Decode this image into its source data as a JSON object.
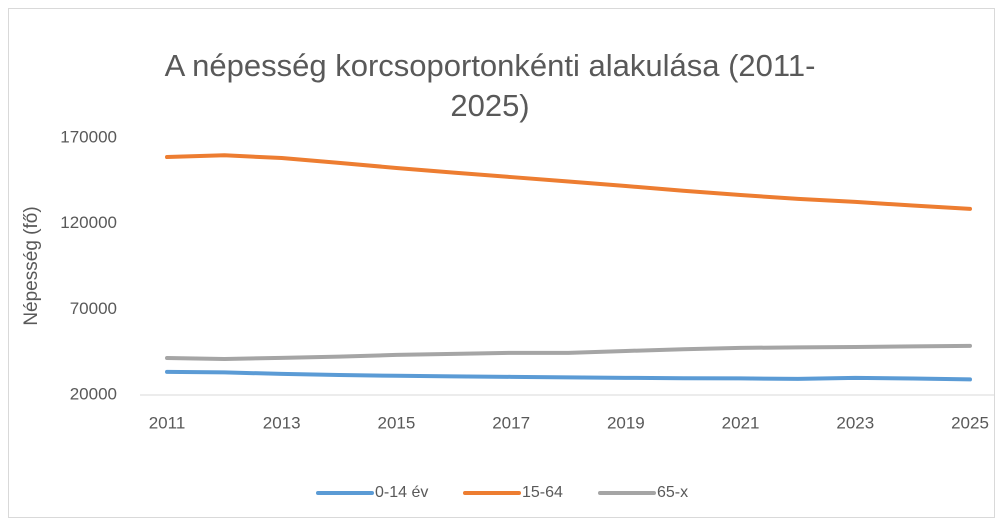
{
  "chart_data": {
    "type": "line",
    "title": "A népesség korcsoportonkénti alakulása (2011-\n2025)",
    "y_label": "Népesség (fő)",
    "x": [
      2011,
      2012,
      2013,
      2014,
      2015,
      2016,
      2017,
      2018,
      2019,
      2020,
      2021,
      2022,
      2023,
      2024,
      2025
    ],
    "xlim": [
      2011,
      2025
    ],
    "xticks": [
      2011,
      2013,
      2015,
      2017,
      2019,
      2021,
      2023,
      2025
    ],
    "ylim": [
      20000,
      170000
    ],
    "yticks": [
      20000,
      70000,
      120000,
      170000
    ],
    "grid": false,
    "legend": "bottom",
    "series": [
      {
        "name": "0-14 év",
        "color": "#5b9bd5",
        "values": [
          33500,
          33200,
          32300,
          31700,
          31200,
          30900,
          30600,
          30300,
          30000,
          29800,
          29700,
          29400,
          30000,
          29600,
          29100
        ]
      },
      {
        "name": "15-64",
        "color": "#ed7d31",
        "values": [
          158900,
          159900,
          158300,
          155500,
          152500,
          149800,
          147200,
          144600,
          142000,
          139200,
          136700,
          134500,
          132700,
          130600,
          128600
        ]
      },
      {
        "name": "65-x",
        "color": "#a5a5a5",
        "values": [
          41600,
          41000,
          41700,
          42400,
          43400,
          44000,
          44600,
          44600,
          45700,
          46700,
          47500,
          47800,
          48000,
          48400,
          48700
        ]
      }
    ]
  }
}
